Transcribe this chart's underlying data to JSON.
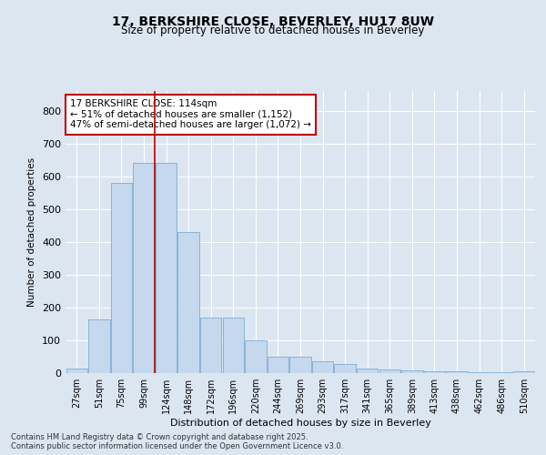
{
  "title": "17, BERKSHIRE CLOSE, BEVERLEY, HU17 8UW",
  "subtitle": "Size of property relative to detached houses in Beverley",
  "xlabel": "Distribution of detached houses by size in Beverley",
  "ylabel": "Number of detached properties",
  "bar_color": "#c5d8ee",
  "bar_edge_color": "#7aadd4",
  "fig_bg_color": "#dce6f1",
  "plot_bg_color": "#dce6f1",
  "categories": [
    "27sqm",
    "51sqm",
    "75sqm",
    "99sqm",
    "124sqm",
    "148sqm",
    "172sqm",
    "196sqm",
    "220sqm",
    "244sqm",
    "269sqm",
    "293sqm",
    "317sqm",
    "341sqm",
    "365sqm",
    "389sqm",
    "413sqm",
    "438sqm",
    "462sqm",
    "486sqm",
    "510sqm"
  ],
  "values": [
    15,
    165,
    580,
    640,
    640,
    430,
    170,
    170,
    100,
    50,
    50,
    37,
    28,
    13,
    10,
    8,
    5,
    5,
    2,
    2,
    5
  ],
  "vline_x_index": 3.5,
  "vline_color": "#c00000",
  "annotation_text": "17 BERKSHIRE CLOSE: 114sqm\n← 51% of detached houses are smaller (1,152)\n47% of semi-detached houses are larger (1,072) →",
  "annotation_box_facecolor": "#ffffff",
  "annotation_box_edgecolor": "#c00000",
  "ylim": [
    0,
    860
  ],
  "yticks": [
    0,
    100,
    200,
    300,
    400,
    500,
    600,
    700,
    800
  ],
  "footer_line1": "Contains HM Land Registry data © Crown copyright and database right 2025.",
  "footer_line2": "Contains public sector information licensed under the Open Government Licence v3.0."
}
